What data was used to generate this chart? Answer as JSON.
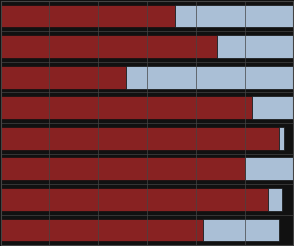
{
  "red_values": [
    14.5,
    19.2,
    17.5,
    20.0,
    18.0,
    9.0,
    15.5,
    12.5
  ],
  "blue_values": [
    5.5,
    1.0,
    3.5,
    0.3,
    3.5,
    12.5,
    6.0,
    8.5
  ],
  "red_color": "#882222",
  "blue_color": "#AABFD6",
  "bg_color": "#111111",
  "bar_edge_color": "#111111",
  "grid_color": "#444444",
  "xlim": [
    0,
    21
  ],
  "n_gridlines": 7,
  "bar_height": 0.75
}
